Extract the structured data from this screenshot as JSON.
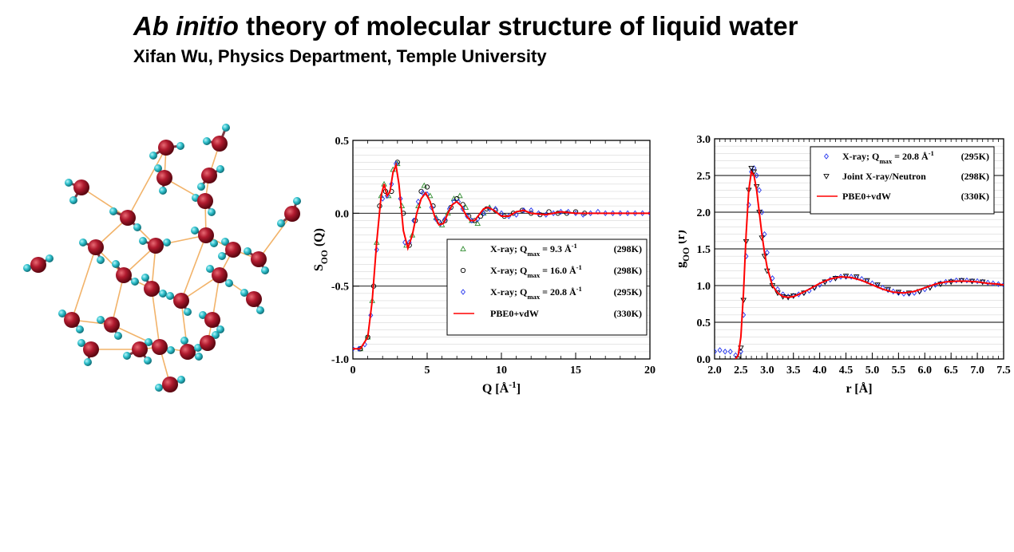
{
  "slide": {
    "title_italic": "Ab initio",
    "title_rest": " theory of molecular structure of liquid water",
    "subtitle": "Xifan Wu, Physics Department, Temple University"
  },
  "colors": {
    "oxygen": "#a8142a",
    "hydrogen": "#2fc0cc",
    "hbond": "#f2b36a",
    "green": "#2e8b2e",
    "black": "#000000",
    "blue": "#2233ee",
    "red": "#ff0000"
  },
  "chart_data": [
    {
      "type": "line",
      "ylabel": "S",
      "ylabel_sub": "OO",
      "ylabel_arg": " (Q)",
      "xlabel_prefix": "Q [",
      "xlabel_unit": "Å",
      "xlabel_sup": "-1",
      "xlabel_suffix": "]",
      "xlim": [
        0,
        20
      ],
      "ylim": [
        -1.0,
        0.5
      ],
      "xticks": [
        "0",
        "5",
        "10",
        "15",
        "20"
      ],
      "yticks": [
        "-1.0",
        "-0.5",
        "0.0",
        "0.5"
      ],
      "xtick_values": [
        0,
        5,
        10,
        15,
        20
      ],
      "ytick_values": [
        -1.0,
        -0.5,
        0.0,
        0.5
      ],
      "grid": true,
      "legend_position": "bottom-right",
      "legend": [
        {
          "label": "X-ray; Q",
          "sub": "max",
          "value": " =   9.3 Å",
          "sup": "-1",
          "temp": "(298K)",
          "marker": "triangle",
          "color": "#2e8b2e"
        },
        {
          "label": "X-ray; Q",
          "sub": "max",
          "value": " = 16.0 Å",
          "sup": "-1",
          "temp": "(298K)",
          "marker": "circle",
          "color": "#000000"
        },
        {
          "label": "X-ray; Q",
          "sub": "max",
          "value": " = 20.8 Å",
          "sup": "-1",
          "temp": "(295K)",
          "marker": "diamond",
          "color": "#2233ee"
        },
        {
          "label": "PBE0+vdW",
          "sub": "",
          "value": "",
          "sup": "",
          "temp": "(330K)",
          "marker": "line",
          "color": "#ff0000"
        }
      ],
      "series": [
        {
          "name": "X-ray; Qmax = 9.3 Å-1 (298K)",
          "color": "#2e8b2e",
          "marker": "triangle",
          "x": [
            0.5,
            1.0,
            1.3,
            1.6,
            1.9,
            2.1,
            2.4,
            2.7,
            3.0,
            3.3,
            3.6,
            4.0,
            4.4,
            4.8,
            5.2,
            5.6,
            6.0,
            6.4,
            6.8,
            7.2,
            7.6,
            8.0,
            8.4,
            8.8,
            9.2
          ],
          "y": [
            -0.93,
            -0.85,
            -0.6,
            -0.2,
            0.12,
            0.2,
            0.12,
            0.3,
            0.34,
            0.05,
            -0.22,
            -0.15,
            0.05,
            0.19,
            0.12,
            -0.03,
            -0.08,
            0.0,
            0.1,
            0.12,
            0.04,
            -0.05,
            -0.07,
            0.0,
            0.04
          ]
        },
        {
          "name": "X-ray; Qmax = 16.0 Å-1 (298K)",
          "color": "#000000",
          "marker": "circle",
          "x": [
            0.5,
            1.0,
            1.4,
            1.8,
            2.2,
            2.6,
            3.0,
            3.4,
            3.8,
            4.2,
            4.6,
            5.0,
            5.4,
            5.8,
            6.2,
            6.6,
            7.0,
            7.4,
            7.8,
            8.2,
            8.6,
            9.0,
            9.6,
            10.2,
            10.8,
            11.4,
            12.0,
            12.6,
            13.2,
            13.8,
            14.4,
            15.0,
            15.6
          ],
          "y": [
            -0.93,
            -0.85,
            -0.5,
            0.05,
            0.15,
            0.15,
            0.35,
            0.0,
            -0.22,
            -0.05,
            0.15,
            0.18,
            0.05,
            -0.06,
            -0.05,
            0.04,
            0.1,
            0.06,
            -0.02,
            -0.05,
            -0.02,
            0.03,
            0.02,
            -0.02,
            0.0,
            0.02,
            0.0,
            -0.01,
            0.01,
            0.0,
            0.0,
            0.01,
            0.0
          ]
        },
        {
          "name": "X-ray; Qmax = 20.8 Å-1 (295K)",
          "color": "#2233ee",
          "marker": "diamond",
          "x": [
            0.0,
            0.4,
            0.8,
            1.2,
            1.6,
            2.0,
            2.3,
            2.6,
            2.9,
            3.2,
            3.5,
            3.8,
            4.1,
            4.4,
            4.7,
            5.0,
            5.3,
            5.6,
            5.9,
            6.2,
            6.5,
            6.8,
            7.1,
            7.4,
            7.7,
            8.0,
            8.4,
            8.8,
            9.2,
            9.6,
            10.0,
            10.5,
            11.0,
            11.5,
            12.0,
            12.5,
            13.0,
            13.5,
            14.0,
            14.5,
            15.0,
            15.5,
            16.0,
            16.5,
            17.0,
            17.5,
            18.0,
            18.5,
            19.0,
            19.5,
            20.0
          ],
          "y": [
            -0.93,
            -0.93,
            -0.9,
            -0.7,
            -0.25,
            0.1,
            0.12,
            0.2,
            0.34,
            0.1,
            -0.2,
            -0.2,
            -0.05,
            0.08,
            0.14,
            0.13,
            0.04,
            -0.04,
            -0.07,
            -0.04,
            0.03,
            0.08,
            0.08,
            0.03,
            -0.02,
            -0.05,
            -0.04,
            0.0,
            0.03,
            0.03,
            0.0,
            -0.02,
            -0.01,
            0.02,
            0.02,
            0.0,
            -0.01,
            0.0,
            0.01,
            0.01,
            0.0,
            -0.01,
            0.0,
            0.01,
            0.0,
            0.0,
            0.0,
            0.0,
            0.0,
            0.0,
            0.0
          ]
        },
        {
          "name": "PBE0+vdW (330K)",
          "color": "#ff0000",
          "marker": "line",
          "x": [
            0.0,
            0.5,
            1.0,
            1.3,
            1.6,
            1.9,
            2.1,
            2.3,
            2.5,
            2.7,
            2.9,
            3.1,
            3.4,
            3.7,
            4.0,
            4.3,
            4.6,
            4.9,
            5.2,
            5.5,
            5.8,
            6.1,
            6.4,
            6.7,
            7.0,
            7.3,
            7.6,
            7.9,
            8.2,
            8.5,
            8.8,
            9.1,
            9.5,
            10.0,
            10.5,
            11.0,
            11.5,
            12.0,
            13.0,
            14.0,
            15.0,
            16.0,
            17.0,
            18.0,
            19.0,
            20.0
          ],
          "y": [
            -0.93,
            -0.93,
            -0.85,
            -0.6,
            -0.2,
            0.12,
            0.2,
            0.12,
            0.15,
            0.28,
            0.33,
            0.2,
            -0.12,
            -0.24,
            -0.15,
            0.0,
            0.1,
            0.14,
            0.08,
            -0.02,
            -0.08,
            -0.07,
            0.0,
            0.06,
            0.08,
            0.05,
            -0.01,
            -0.05,
            -0.05,
            -0.01,
            0.03,
            0.04,
            0.02,
            -0.02,
            -0.02,
            0.01,
            0.02,
            0.0,
            -0.01,
            0.01,
            0.0,
            0.0,
            0.0,
            0.0,
            0.0,
            0.0
          ]
        }
      ]
    },
    {
      "type": "line",
      "ylabel": "g",
      "ylabel_sub": "OO",
      "ylabel_arg": " (r)",
      "xlabel_prefix": "r [",
      "xlabel_unit": "Å",
      "xlabel_sup": "",
      "xlabel_suffix": "]",
      "xlim": [
        2.0,
        7.5
      ],
      "ylim": [
        0.0,
        3.0
      ],
      "xticks": [
        "2.0",
        "2.5",
        "3.0",
        "3.5",
        "4.0",
        "4.5",
        "5.0",
        "5.5",
        "6.0",
        "6.5",
        "7.0",
        "7.5"
      ],
      "yticks": [
        "0.0",
        "0.5",
        "1.0",
        "1.5",
        "2.0",
        "2.5",
        "3.0"
      ],
      "xtick_values": [
        2.0,
        2.5,
        3.0,
        3.5,
        4.0,
        4.5,
        5.0,
        5.5,
        6.0,
        6.5,
        7.0,
        7.5
      ],
      "ytick_values": [
        0.0,
        0.5,
        1.0,
        1.5,
        2.0,
        2.5,
        3.0
      ],
      "grid": true,
      "legend_position": "top-right",
      "legend": [
        {
          "label": "X-ray; Q",
          "sub": "max",
          "value": " = 20.8 Å",
          "sup": "-1",
          "temp": "(295K)",
          "marker": "diamond",
          "color": "#2233ee"
        },
        {
          "label": "Joint X-ray/Neutron",
          "sub": "",
          "value": "",
          "sup": "",
          "temp": "(298K)",
          "marker": "down-triangle",
          "color": "#000000"
        },
        {
          "label": "PBE0+vdW",
          "sub": "",
          "value": "",
          "sup": "",
          "temp": "(330K)",
          "marker": "line",
          "color": "#ff0000"
        }
      ],
      "series": [
        {
          "name": "X-ray; Qmax = 20.8 Å-1 (295K)",
          "color": "#2233ee",
          "marker": "diamond",
          "x": [
            2.0,
            2.1,
            2.2,
            2.3,
            2.4,
            2.5,
            2.55,
            2.6,
            2.65,
            2.7,
            2.75,
            2.8,
            2.85,
            2.9,
            2.95,
            3.0,
            3.1,
            3.2,
            3.3,
            3.4,
            3.5,
            3.6,
            3.7,
            3.8,
            3.9,
            4.0,
            4.1,
            4.2,
            4.3,
            4.4,
            4.5,
            4.6,
            4.7,
            4.8,
            4.9,
            5.0,
            5.1,
            5.2,
            5.3,
            5.4,
            5.5,
            5.6,
            5.7,
            5.8,
            5.9,
            6.0,
            6.1,
            6.2,
            6.3,
            6.4,
            6.5,
            6.6,
            6.7,
            6.8,
            6.9,
            7.0,
            7.1,
            7.2,
            7.3,
            7.4,
            7.5
          ],
          "y": [
            0.1,
            0.12,
            0.1,
            0.1,
            0.05,
            0.1,
            0.6,
            1.4,
            2.1,
            2.55,
            2.6,
            2.5,
            2.3,
            2.0,
            1.7,
            1.45,
            1.1,
            0.95,
            0.88,
            0.85,
            0.86,
            0.88,
            0.9,
            0.93,
            0.97,
            1.01,
            1.05,
            1.08,
            1.1,
            1.12,
            1.12,
            1.12,
            1.11,
            1.09,
            1.06,
            1.03,
            1.0,
            0.97,
            0.94,
            0.92,
            0.9,
            0.89,
            0.89,
            0.9,
            0.92,
            0.95,
            0.98,
            1.01,
            1.03,
            1.05,
            1.06,
            1.07,
            1.07,
            1.07,
            1.06,
            1.06,
            1.05,
            1.04,
            1.03,
            1.02,
            1.01
          ]
        },
        {
          "name": "Joint X-ray/Neutron (298K)",
          "color": "#000000",
          "marker": "down-triangle",
          "x": [
            2.45,
            2.5,
            2.55,
            2.6,
            2.65,
            2.7,
            2.75,
            2.8,
            2.85,
            2.9,
            2.95,
            3.0,
            3.1,
            3.2,
            3.3,
            3.4,
            3.5,
            3.7,
            3.9,
            4.1,
            4.3,
            4.5,
            4.7,
            4.9,
            5.1,
            5.3,
            5.5,
            5.7,
            5.9,
            6.1,
            6.3,
            6.5,
            6.7,
            6.9,
            7.1
          ],
          "y": [
            0.0,
            0.15,
            0.8,
            1.6,
            2.3,
            2.6,
            2.55,
            2.35,
            2.0,
            1.65,
            1.4,
            1.2,
            1.0,
            0.9,
            0.85,
            0.84,
            0.86,
            0.9,
            0.97,
            1.05,
            1.1,
            1.13,
            1.12,
            1.07,
            1.01,
            0.95,
            0.91,
            0.9,
            0.92,
            0.97,
            1.02,
            1.05,
            1.07,
            1.06,
            1.05
          ]
        },
        {
          "name": "PBE0+vdW (330K)",
          "color": "#ff0000",
          "marker": "line",
          "x": [
            2.4,
            2.45,
            2.5,
            2.55,
            2.6,
            2.65,
            2.7,
            2.75,
            2.8,
            2.85,
            2.9,
            2.95,
            3.0,
            3.1,
            3.2,
            3.3,
            3.4,
            3.5,
            3.6,
            3.8,
            4.0,
            4.2,
            4.4,
            4.6,
            4.8,
            5.0,
            5.2,
            5.4,
            5.6,
            5.8,
            6.0,
            6.2,
            6.4,
            6.6,
            6.8,
            7.0,
            7.2,
            7.4,
            7.5
          ],
          "y": [
            0.0,
            0.05,
            0.3,
            0.9,
            1.7,
            2.3,
            2.55,
            2.5,
            2.3,
            2.0,
            1.7,
            1.45,
            1.25,
            1.0,
            0.9,
            0.85,
            0.84,
            0.85,
            0.88,
            0.95,
            1.03,
            1.09,
            1.12,
            1.11,
            1.07,
            1.01,
            0.95,
            0.91,
            0.9,
            0.92,
            0.97,
            1.02,
            1.05,
            1.06,
            1.06,
            1.05,
            1.03,
            1.02,
            1.01
          ]
        }
      ]
    }
  ]
}
